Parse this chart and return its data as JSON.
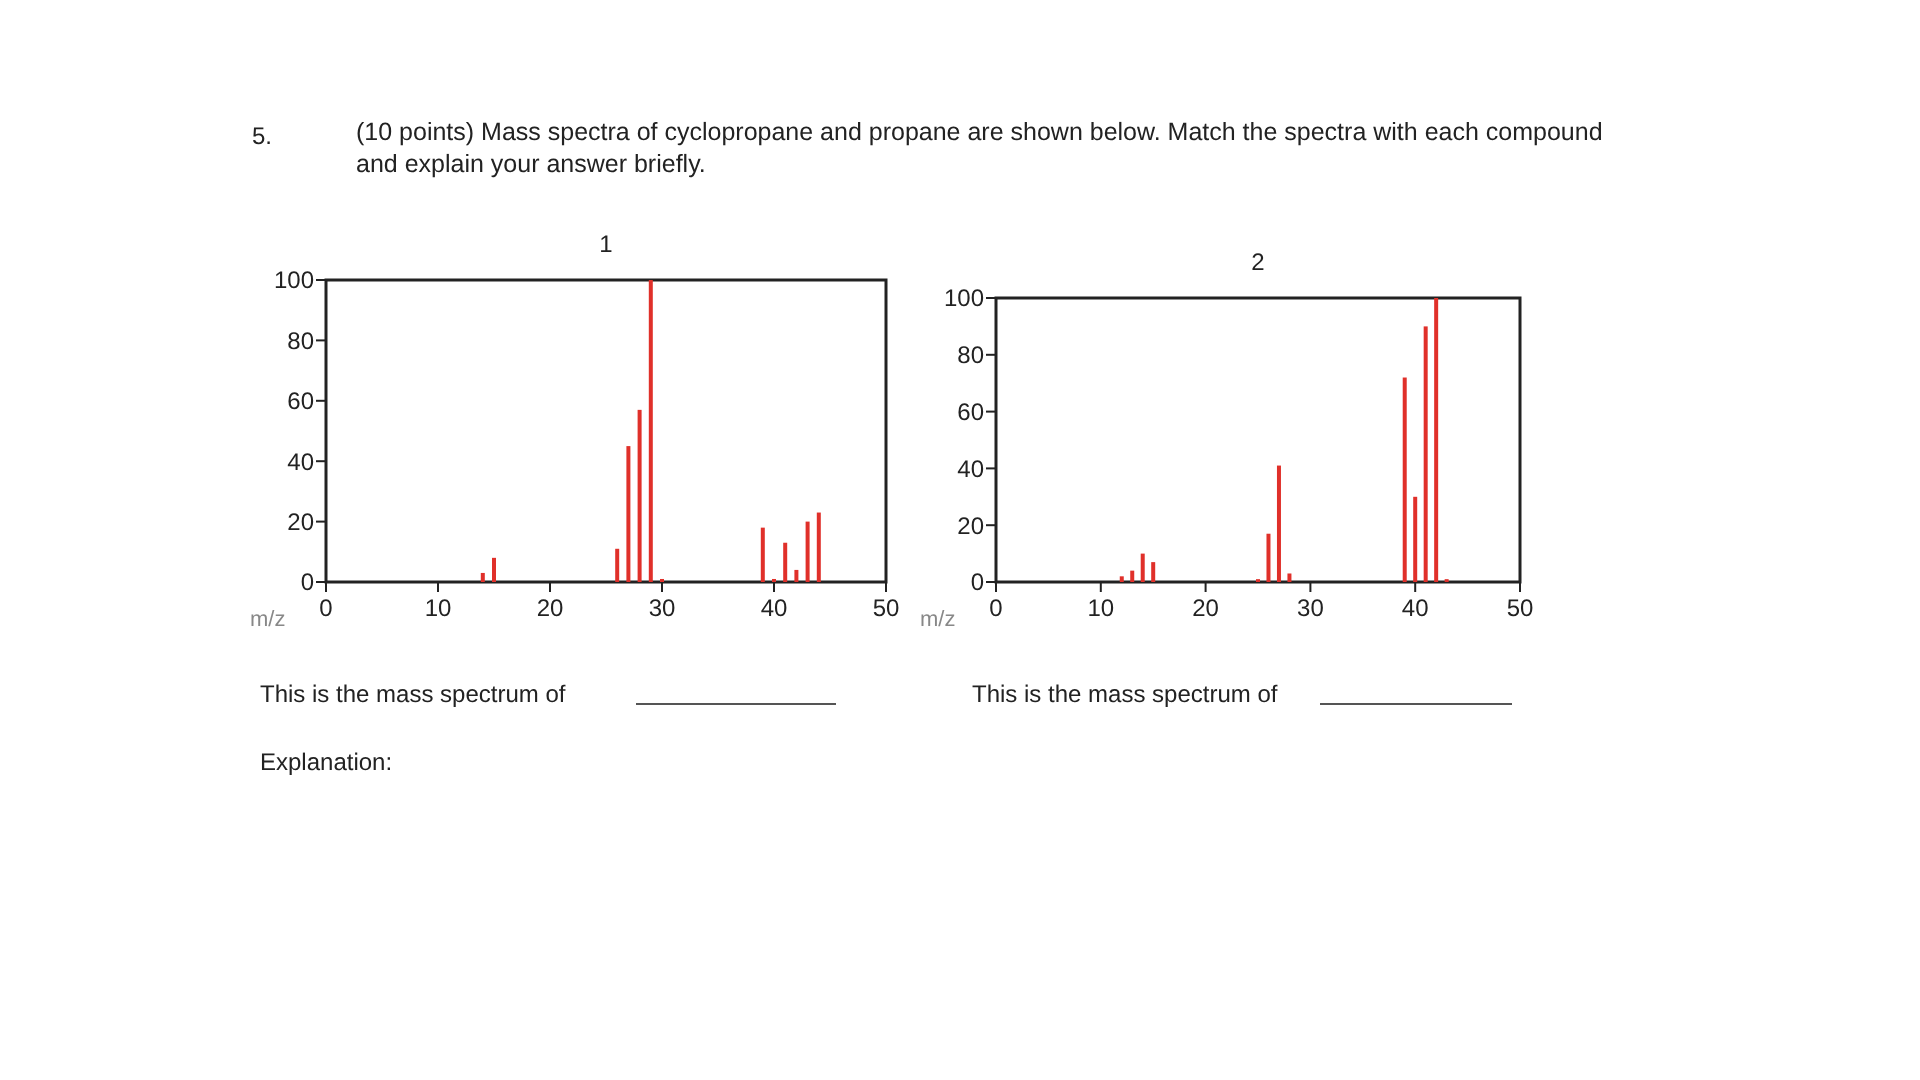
{
  "chart_data": [
    {
      "type": "bar",
      "title": "1",
      "xlabel": "m/z",
      "x": [
        14,
        15,
        26,
        27,
        28,
        29,
        30,
        39,
        40,
        41,
        42,
        43,
        44
      ],
      "values": [
        3,
        8,
        11,
        45,
        57,
        100,
        1,
        18,
        1,
        13,
        4,
        20,
        23
      ],
      "color": "#e0302a",
      "xlim": [
        0,
        50
      ],
      "ylim": [
        0,
        100
      ],
      "xticks": [
        0,
        10,
        20,
        30,
        40,
        50
      ],
      "yticks": [
        0,
        20,
        40,
        60,
        80,
        100
      ],
      "grid": false,
      "annotations": [
        "5.",
        "(10 points) Mass spectra of cyclopropane and propane are shown below.  Match the spectra with each compound and explain your answer briefly.",
        "This is the mass spectrum of",
        "Explanation:"
      ]
    },
    {
      "type": "bar",
      "title": "2",
      "xlabel": "m/z",
      "x": [
        12,
        13,
        14,
        15,
        25,
        26,
        27,
        28,
        39,
        40,
        41,
        42,
        43
      ],
      "values": [
        2,
        4,
        10,
        7,
        1,
        17,
        41,
        3,
        72,
        30,
        90,
        100,
        1
      ],
      "color": "#e0302a",
      "xlim": [
        0,
        50
      ],
      "ylim": [
        0,
        100
      ],
      "xticks": [
        0,
        10,
        20,
        30,
        40,
        50
      ],
      "yticks": [
        0,
        20,
        40,
        60,
        80,
        100
      ],
      "grid": false,
      "annotations": [
        "This is the mass spectrum of"
      ]
    }
  ]
}
